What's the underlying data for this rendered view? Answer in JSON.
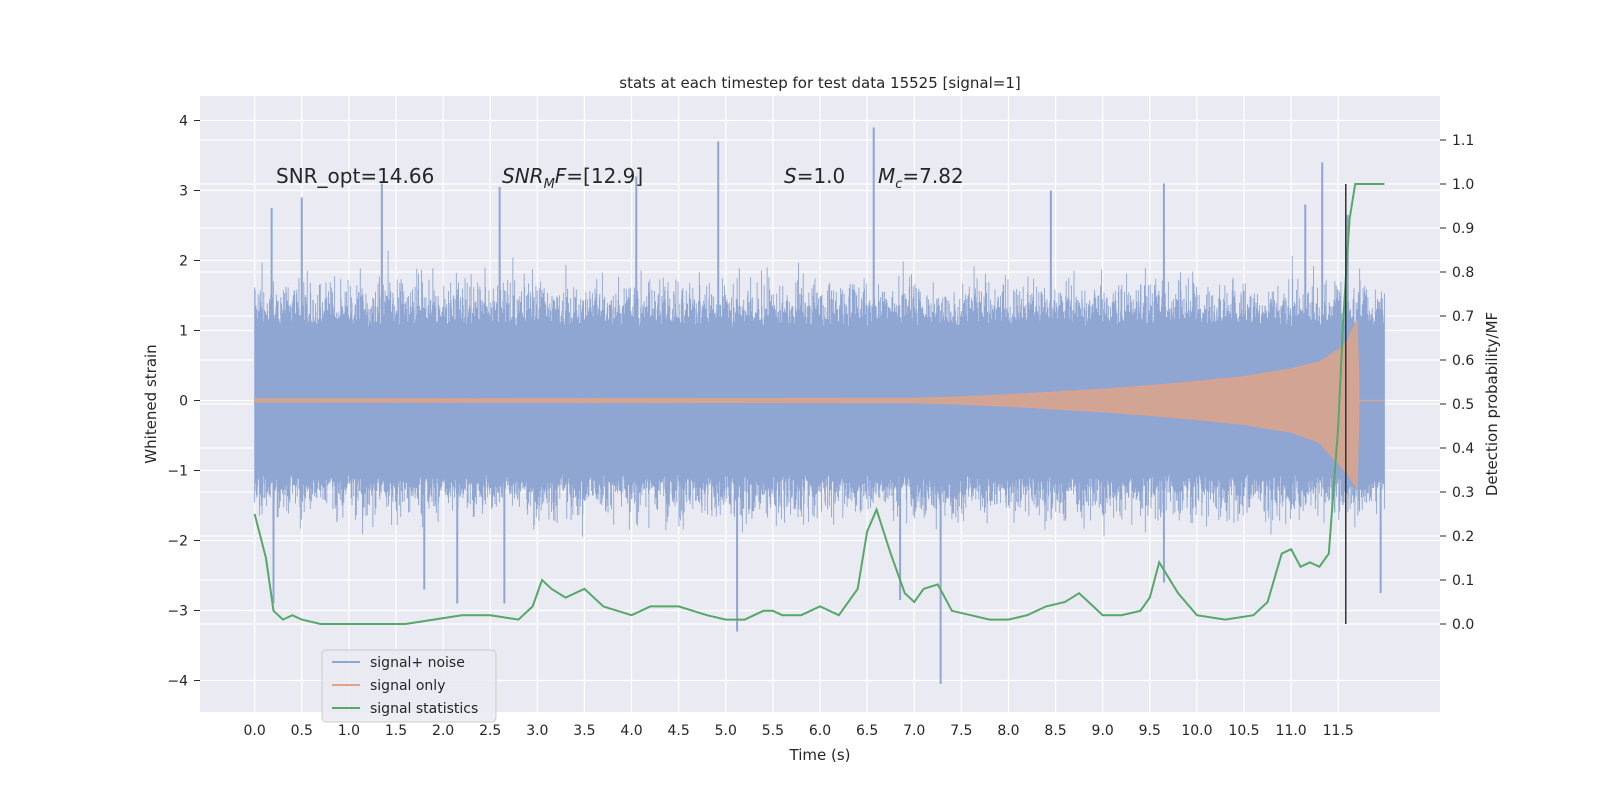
{
  "chart_data": {
    "type": "line",
    "title": "stats at each timestep for test data 15525 [signal=1]",
    "xlabel": "Time (s)",
    "ylabel": "Whitened strain",
    "ylabel_right": "Detection probability/MF",
    "xlim": [
      -0.58,
      12.58
    ],
    "ylim": [
      -4.45,
      4.35
    ],
    "ylim_right": [
      -0.2,
      1.2
    ],
    "x_ticks": [
      0.0,
      0.5,
      1.0,
      1.5,
      2.0,
      2.5,
      3.0,
      3.5,
      4.0,
      4.5,
      5.0,
      5.5,
      6.0,
      6.5,
      7.0,
      7.5,
      8.0,
      8.5,
      9.0,
      9.5,
      10.0,
      10.5,
      11.0,
      11.5
    ],
    "x_tick_labels": [
      "0.0",
      "0.5",
      "1.0",
      "1.5",
      "2.0",
      "2.5",
      "3.0",
      "3.5",
      "4.0",
      "4.5",
      "5.0",
      "5.5",
      "6.0",
      "6.5",
      "7.0",
      "7.5",
      "8.0",
      "8.5",
      "9.0",
      "9.5",
      "10.0",
      "10.5",
      "11.0",
      "11.5"
    ],
    "y_ticks": [
      -4,
      -3,
      -2,
      -1,
      0,
      1,
      2,
      3,
      4
    ],
    "y_tick_labels": [
      "−4",
      "−3",
      "−2",
      "−1",
      "0",
      "1",
      "2",
      "3",
      "4"
    ],
    "y_ticks_right": [
      0.0,
      0.1,
      0.2,
      0.3,
      0.4,
      0.5,
      0.6,
      0.7,
      0.8,
      0.9,
      1.0,
      1.1
    ],
    "y_tick_labels_right": [
      "0.0",
      "0.1",
      "0.2",
      "0.3",
      "0.4",
      "0.5",
      "0.6",
      "0.7",
      "0.8",
      "0.9",
      "1.0",
      "1.1"
    ],
    "grid": true,
    "legend_position": "bottom-left",
    "annotations": [
      {
        "text": "SNR_opt=14.66",
        "x": 0.2,
        "y": 3.1
      },
      {
        "text": "SNR_MF=[12.9]",
        "x": 2.6,
        "y": 3.1
      },
      {
        "text": "S=1.0",
        "x": 5.6,
        "y": 3.1
      },
      {
        "text": "M_c=7.82",
        "x": 6.6,
        "y": 3.1
      }
    ],
    "vline": {
      "x": 11.58,
      "y_range_right": [
        0.0,
        1.0
      ]
    },
    "series": [
      {
        "name": "signal+ noise",
        "color": "#8fa6d3",
        "axis": "left",
        "kind": "noise-band",
        "x_range": [
          0.0,
          11.99
        ],
        "typical_envelope": [
          -1.5,
          1.8
        ],
        "peaks": [
          {
            "x": 0.18,
            "y": 2.75
          },
          {
            "x": 0.5,
            "y": 2.9
          },
          {
            "x": 1.35,
            "y": 3.1
          },
          {
            "x": 2.6,
            "y": 3.05
          },
          {
            "x": 4.05,
            "y": 3.2
          },
          {
            "x": 4.92,
            "y": 3.7
          },
          {
            "x": 6.57,
            "y": 3.9
          },
          {
            "x": 8.45,
            "y": 3.0
          },
          {
            "x": 9.65,
            "y": 3.1
          },
          {
            "x": 11.15,
            "y": 2.8
          },
          {
            "x": 11.33,
            "y": 3.4
          },
          {
            "x": 11.6,
            "y": 2.65
          }
        ],
        "troughs": [
          {
            "x": 0.2,
            "y": -2.9
          },
          {
            "x": 1.8,
            "y": -2.7
          },
          {
            "x": 2.15,
            "y": -2.9
          },
          {
            "x": 2.65,
            "y": -2.9
          },
          {
            "x": 5.12,
            "y": -3.3
          },
          {
            "x": 6.85,
            "y": -2.85
          },
          {
            "x": 7.28,
            "y": -4.05
          },
          {
            "x": 9.65,
            "y": -2.6
          },
          {
            "x": 11.95,
            "y": -2.75
          }
        ]
      },
      {
        "name": "signal only",
        "color": "#dea388",
        "axis": "left",
        "kind": "chirp-envelope",
        "x": [
          0.0,
          7.0,
          7.5,
          8.0,
          8.5,
          9.0,
          9.5,
          10.0,
          10.5,
          11.0,
          11.3,
          11.5,
          11.6,
          11.7,
          11.72,
          11.99
        ],
        "y_upper": [
          0.02,
          0.03,
          0.05,
          0.08,
          0.12,
          0.16,
          0.21,
          0.27,
          0.34,
          0.45,
          0.55,
          0.72,
          0.85,
          1.15,
          0.0,
          0.0
        ],
        "y_lower": [
          -0.02,
          -0.03,
          -0.05,
          -0.08,
          -0.12,
          -0.16,
          -0.21,
          -0.27,
          -0.34,
          -0.45,
          -0.6,
          -0.9,
          -1.05,
          -1.25,
          0.0,
          0.0
        ]
      },
      {
        "name": "signal statistics",
        "color": "#55a868",
        "axis": "right",
        "x": [
          0.0,
          0.12,
          0.2,
          0.3,
          0.4,
          0.5,
          0.7,
          1.0,
          1.3,
          1.6,
          1.9,
          2.2,
          2.5,
          2.8,
          2.95,
          3.05,
          3.15,
          3.3,
          3.5,
          3.7,
          4.0,
          4.2,
          4.5,
          4.8,
          5.0,
          5.2,
          5.3,
          5.4,
          5.5,
          5.6,
          5.8,
          6.0,
          6.2,
          6.4,
          6.5,
          6.6,
          6.75,
          6.9,
          7.0,
          7.1,
          7.25,
          7.4,
          7.6,
          7.8,
          8.0,
          8.2,
          8.4,
          8.6,
          8.75,
          8.9,
          9.0,
          9.2,
          9.4,
          9.5,
          9.6,
          9.8,
          10.0,
          10.3,
          10.6,
          10.75,
          10.9,
          11.0,
          11.1,
          11.2,
          11.3,
          11.4,
          11.5,
          11.55,
          11.62,
          11.68,
          11.75,
          11.85,
          11.99
        ],
        "y": [
          0.25,
          0.15,
          0.03,
          0.01,
          0.02,
          0.01,
          0.0,
          0.0,
          0.0,
          0.0,
          0.01,
          0.02,
          0.02,
          0.01,
          0.04,
          0.1,
          0.08,
          0.06,
          0.08,
          0.04,
          0.02,
          0.04,
          0.04,
          0.02,
          0.01,
          0.01,
          0.02,
          0.03,
          0.03,
          0.02,
          0.02,
          0.04,
          0.02,
          0.08,
          0.21,
          0.26,
          0.16,
          0.07,
          0.05,
          0.08,
          0.09,
          0.03,
          0.02,
          0.01,
          0.01,
          0.02,
          0.04,
          0.05,
          0.07,
          0.04,
          0.02,
          0.02,
          0.03,
          0.06,
          0.14,
          0.07,
          0.02,
          0.01,
          0.02,
          0.05,
          0.16,
          0.17,
          0.13,
          0.14,
          0.13,
          0.16,
          0.45,
          0.68,
          0.92,
          1.0,
          1.0,
          1.0,
          1.0
        ]
      }
    ]
  }
}
